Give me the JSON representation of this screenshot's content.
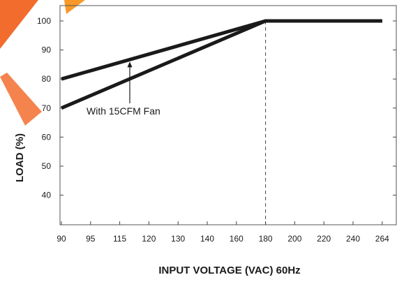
{
  "chart_data": {
    "type": "line",
    "xlabel": "INPUT VOLTAGE (VAC) 60Hz",
    "ylabel": "LOAD (%)",
    "x_ticks": [
      "90",
      "95",
      "115",
      "120",
      "130",
      "140",
      "160",
      "180",
      "200",
      "220",
      "240",
      "264"
    ],
    "y_ticks": [
      100,
      90,
      80,
      70,
      60,
      50,
      40
    ],
    "ylim": [
      30,
      105
    ],
    "grid": false,
    "series": [
      {
        "name": "With 15CFM Fan",
        "x": [
          "90",
          "180",
          "264"
        ],
        "y": [
          80,
          100,
          100
        ]
      },
      {
        "x": [
          "90",
          "180",
          "264"
        ],
        "y": [
          70,
          100,
          100
        ]
      }
    ],
    "reference_line": {
      "x": "180",
      "style": "dashed"
    },
    "annotations": [
      {
        "text": "With 15CFM Fan",
        "points_to_series": 0
      }
    ],
    "colors": {
      "line": "#1a1a1a",
      "watermark": "#f26522"
    }
  }
}
